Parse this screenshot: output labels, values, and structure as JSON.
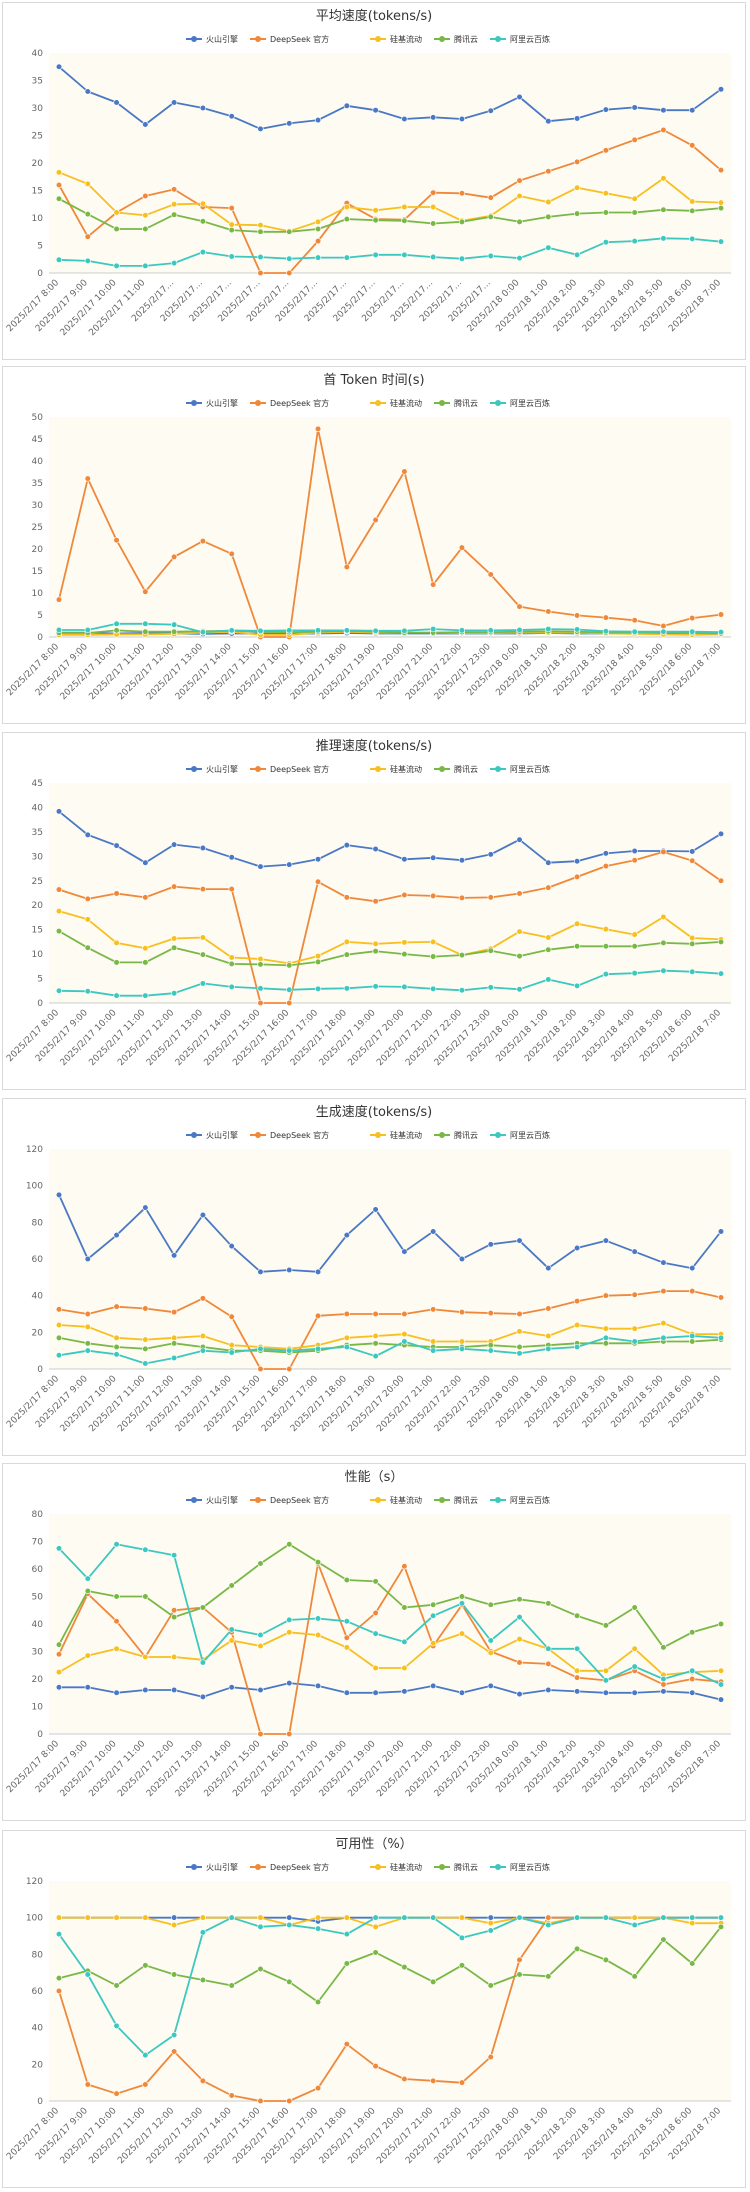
{
  "x": [
    "2025/2/17 8:00",
    "2025/2/17 9:00",
    "2025/2/17 10:00",
    "2025/2/17 11:00",
    "2025/2/17 12:00",
    "2025/2/17 13:00",
    "2025/2/17 14:00",
    "2025/2/17 15:00",
    "2025/2/17 16:00",
    "2025/2/17 17:00",
    "2025/2/17 18:00",
    "2025/2/17 19:00",
    "2025/2/17 20:00",
    "2025/2/17 21:00",
    "2025/2/17 22:00",
    "2025/2/17 23:00",
    "2025/2/18 0:00",
    "2025/2/18 1:00",
    "2025/2/18 2:00",
    "2025/2/18 3:00",
    "2025/2/18 4:00",
    "2025/2/18 5:00",
    "2025/2/18 6:00",
    "2025/2/18 7:00"
  ],
  "x_labels_truncated": [
    "2025/2/17 8:00",
    "2025/2/17 9:00",
    "2025/2/17 10:00",
    "2025/2/17 11:00",
    "2025/2/17…",
    "2025/2/17…",
    "2025/2/17…",
    "2025/2/17…",
    "2025/2/17…",
    "2025/2/17…",
    "2025/2/17…",
    "2025/2/17…",
    "2025/2/17…",
    "2025/2/17…",
    "2025/2/17…",
    "2025/2/17…",
    "2025/2/18 0:00",
    "2025/2/18 1:00",
    "2025/2/18 2:00",
    "2025/2/18 3:00",
    "2025/2/18 4:00",
    "2025/2/18 5:00",
    "2025/2/18 6:00",
    "2025/2/18 7:00"
  ],
  "series_names": [
    "火山引擎",
    "DeepSeek 官方",
    "硅基流动",
    "腾讯云",
    "阿里云百炼"
  ],
  "colors": [
    "#4a78c5",
    "#f0883a",
    "#f7bf1f",
    "#79b846",
    "#3cc8bf"
  ],
  "chart_data": [
    {
      "type": "line",
      "title": "平均速度(tokens/s)",
      "x_labels": "truncated",
      "ylim": [
        0,
        40
      ],
      "ystep": 5,
      "grid": false,
      "legend": "top-center",
      "series": [
        {
          "name": "火山引擎",
          "values": [
            37.5,
            33,
            31,
            27,
            31,
            30,
            28.5,
            26.2,
            27.2,
            27.8,
            30.4,
            29.6,
            28,
            28.3,
            28,
            29.5,
            32,
            27.6,
            28.1,
            29.7,
            30.1,
            29.6,
            29.6,
            33.4
          ]
        },
        {
          "name": "DeepSeek 官方",
          "values": [
            16,
            6.6,
            11,
            14,
            15.2,
            12,
            11.8,
            0,
            0,
            5.8,
            12.7,
            9.8,
            9.7,
            14.6,
            14.5,
            13.7,
            16.8,
            18.5,
            20.2,
            22.3,
            24.2,
            26,
            23.2,
            18.7
          ]
        },
        {
          "name": "硅基流动",
          "values": [
            18.3,
            16.2,
            11,
            10.5,
            12.5,
            12.6,
            8.8,
            8.7,
            7.6,
            9.3,
            12,
            11.4,
            12,
            12,
            9.5,
            10.4,
            14,
            12.9,
            15.5,
            14.5,
            13.5,
            17.2,
            13,
            12.8
          ]
        },
        {
          "name": "腾讯云",
          "values": [
            13.5,
            10.7,
            8,
            8,
            10.6,
            9.4,
            7.8,
            7.5,
            7.5,
            8,
            9.8,
            9.6,
            9.5,
            9,
            9.3,
            10.2,
            9.3,
            10.2,
            10.8,
            11,
            11,
            11.5,
            11.3,
            11.8
          ]
        },
        {
          "name": "阿里云百炼",
          "values": [
            2.4,
            2.2,
            1.3,
            1.3,
            1.8,
            3.8,
            3,
            2.9,
            2.6,
            2.8,
            2.8,
            3.3,
            3.3,
            2.9,
            2.6,
            3.1,
            2.7,
            4.6,
            3.3,
            5.6,
            5.8,
            6.3,
            6.2,
            5.7
          ]
        }
      ]
    },
    {
      "type": "line",
      "title": "首 Token 时间(s)",
      "x_labels": "full",
      "ylim": [
        0,
        50
      ],
      "ystep": 5,
      "grid": false,
      "legend": "top-center",
      "series": [
        {
          "name": "火山引擎",
          "values": [
            1,
            1,
            0.8,
            0.9,
            0.8,
            0.7,
            0.8,
            0.8,
            0.7,
            0.8,
            0.9,
            0.8,
            0.8,
            0.8,
            0.8,
            0.8,
            0.8,
            0.9,
            0.8,
            0.8,
            0.8,
            0.8,
            0.8,
            0.8
          ]
        },
        {
          "name": "DeepSeek 官方",
          "values": [
            8.5,
            36,
            22,
            10.3,
            18.2,
            21.8,
            18.9,
            0,
            0,
            47.3,
            15.9,
            26.6,
            37.6,
            11.9,
            20.3,
            14.2,
            6.9,
            5.8,
            4.9,
            4.4,
            3.8,
            2.5,
            4.3,
            5.1
          ]
        },
        {
          "name": "硅基流动",
          "values": [
            0.5,
            0.5,
            0.6,
            0.6,
            0.7,
            1,
            1.2,
            0.5,
            0.5,
            1,
            1.2,
            1,
            1,
            1,
            0.9,
            0.9,
            1,
            1,
            1,
            0.8,
            0.7,
            0.6,
            0.5,
            0.6
          ]
        },
        {
          "name": "腾讯云",
          "values": [
            0.9,
            0.9,
            1.5,
            1.2,
            1.2,
            1.3,
            1.4,
            1.2,
            1.1,
            1.2,
            1.4,
            1.2,
            1,
            1,
            1.1,
            1.1,
            1.2,
            1.3,
            1.2,
            1,
            1,
            1.2,
            0.9,
            0.8
          ]
        },
        {
          "name": "阿里云百炼",
          "values": [
            1.6,
            1.6,
            3,
            3,
            2.8,
            1.1,
            1.5,
            1.4,
            1.5,
            1.5,
            1.5,
            1.4,
            1.4,
            1.8,
            1.5,
            1.5,
            1.6,
            1.8,
            1.7,
            1.3,
            1.2,
            1.2,
            1.2,
            1.1
          ]
        }
      ]
    },
    {
      "type": "line",
      "title": "推理速度(tokens/s)",
      "x_labels": "full",
      "ylim": [
        0,
        45
      ],
      "ystep": 5,
      "grid": false,
      "legend": "top-center",
      "series": [
        {
          "name": "火山引擎",
          "values": [
            39.2,
            34.4,
            32.2,
            28.7,
            32.4,
            31.7,
            29.8,
            27.9,
            28.3,
            29.4,
            32.3,
            31.5,
            29.4,
            29.7,
            29.2,
            30.4,
            33.4,
            28.7,
            29,
            30.6,
            31.1,
            31.1,
            31,
            34.6
          ]
        },
        {
          "name": "DeepSeek 官方",
          "values": [
            23.2,
            21.3,
            22.4,
            21.6,
            23.8,
            23.3,
            23.3,
            0,
            0,
            24.8,
            21.6,
            20.8,
            22.1,
            21.9,
            21.5,
            21.6,
            22.4,
            23.6,
            25.8,
            28,
            29.2,
            30.9,
            29.1,
            25
          ]
        },
        {
          "name": "硅基流动",
          "values": [
            18.8,
            17.1,
            12.3,
            11.2,
            13.2,
            13.4,
            9.3,
            9,
            8.1,
            9.6,
            12.5,
            12.1,
            12.4,
            12.5,
            9.8,
            11.1,
            14.6,
            13.4,
            16.2,
            15.1,
            14,
            17.6,
            13.3,
            13
          ]
        },
        {
          "name": "腾讯云",
          "values": [
            14.7,
            11.3,
            8.3,
            8.3,
            11.3,
            9.9,
            8,
            7.9,
            7.7,
            8.4,
            9.9,
            10.6,
            10,
            9.5,
            9.8,
            10.7,
            9.6,
            10.9,
            11.6,
            11.6,
            11.6,
            12.3,
            12.1,
            12.5
          ]
        },
        {
          "name": "阿里云百炼",
          "values": [
            2.5,
            2.4,
            1.5,
            1.5,
            2,
            4,
            3.3,
            3,
            2.7,
            2.9,
            3,
            3.4,
            3.3,
            2.9,
            2.6,
            3.2,
            2.8,
            4.8,
            3.5,
            5.9,
            6.1,
            6.6,
            6.4,
            6
          ]
        }
      ]
    },
    {
      "type": "line",
      "title": "生成速度(tokens/s)",
      "x_labels": "full",
      "ylim": [
        0,
        120
      ],
      "ystep": 20,
      "grid": false,
      "legend": "top-center",
      "series": [
        {
          "name": "火山引擎",
          "values": [
            95,
            60,
            73,
            88,
            62,
            84,
            67,
            53,
            54,
            53,
            73,
            87,
            64,
            75,
            60,
            68,
            70,
            55,
            66,
            70,
            64,
            58,
            55,
            75
          ]
        },
        {
          "name": "DeepSeek 官方",
          "values": [
            32.5,
            30,
            34,
            33,
            31,
            38.5,
            28.5,
            0,
            0,
            29,
            30,
            30,
            30,
            32.5,
            31,
            30.5,
            30,
            33,
            37,
            40,
            40.5,
            42.5,
            42.5,
            39
          ]
        },
        {
          "name": "硅基流动",
          "values": [
            24,
            23,
            17,
            16,
            17,
            18,
            13,
            12,
            11,
            13,
            17,
            18,
            19,
            15,
            15,
            15,
            20.5,
            18,
            24,
            22,
            22,
            25,
            19,
            19
          ]
        },
        {
          "name": "腾讯云",
          "values": [
            17,
            14,
            12,
            11,
            14,
            12,
            10,
            10,
            9,
            10,
            13,
            14,
            13,
            12,
            12,
            13,
            12,
            13,
            14,
            14,
            14,
            15,
            15,
            16
          ]
        },
        {
          "name": "阿里云百炼",
          "values": [
            7.5,
            10,
            8,
            3,
            6,
            10,
            9,
            11,
            10,
            11,
            12,
            7,
            15,
            10,
            11,
            10,
            8.5,
            11,
            12,
            17,
            15,
            17,
            18,
            17
          ]
        }
      ]
    },
    {
      "type": "line",
      "title": "性能（s）",
      "x_labels": "full",
      "ylim": [
        0,
        80
      ],
      "ystep": 10,
      "grid": false,
      "legend": "top-center",
      "series": [
        {
          "name": "火山引擎",
          "values": [
            17,
            17,
            15,
            16,
            16,
            13.5,
            17,
            16,
            18.5,
            17.5,
            15,
            15,
            15.5,
            17.5,
            15,
            17.5,
            14.5,
            16,
            15.5,
            15,
            15,
            15.5,
            15,
            12.5
          ]
        },
        {
          "name": "DeepSeek 官方",
          "values": [
            29,
            51,
            41,
            28,
            45,
            46,
            37,
            0,
            0,
            62,
            35,
            44,
            61,
            32,
            47,
            30,
            26,
            25.5,
            20.5,
            19.5,
            23,
            18,
            20,
            19
          ]
        },
        {
          "name": "硅基流动",
          "values": [
            22.5,
            28.5,
            31,
            28,
            28,
            27,
            34,
            32,
            37,
            36,
            31.5,
            24,
            24,
            33,
            36.5,
            29.5,
            34.5,
            31,
            23,
            23,
            31,
            21.5,
            22.5,
            23
          ]
        },
        {
          "name": "腾讯云",
          "values": [
            32.5,
            52,
            50,
            50,
            42.5,
            46,
            54,
            62,
            69,
            62.5,
            56,
            55.5,
            46,
            47,
            50,
            47,
            49,
            47.5,
            43,
            39.5,
            46,
            31.5,
            37,
            40
          ]
        },
        {
          "name": "阿里云百炼",
          "values": [
            67.5,
            56.5,
            69,
            67,
            65,
            26,
            38,
            36,
            41.5,
            42,
            41,
            36.5,
            33.5,
            43,
            47.5,
            34,
            42.5,
            31,
            31,
            19.5,
            24.5,
            20,
            23,
            18
          ]
        }
      ]
    },
    {
      "type": "line",
      "title": "可用性（%）",
      "x_labels": "full",
      "ylim": [
        0,
        120
      ],
      "ystep": 20,
      "grid": false,
      "legend": "top-center",
      "series": [
        {
          "name": "火山引擎",
          "values": [
            100,
            100,
            100,
            100,
            100,
            100,
            100,
            100,
            100,
            98,
            100,
            100,
            100,
            100,
            100,
            100,
            100,
            100,
            100,
            100,
            100,
            100,
            100,
            100
          ]
        },
        {
          "name": "DeepSeek 官方",
          "values": [
            60,
            9,
            4,
            9,
            27,
            11,
            3,
            0,
            0,
            7,
            31,
            19,
            12,
            11,
            10,
            24,
            77,
            100,
            100,
            100,
            100,
            100,
            100,
            100
          ]
        },
        {
          "name": "硅基流动",
          "values": [
            100,
            100,
            100,
            100,
            96,
            100,
            100,
            100,
            96,
            100,
            100,
            95,
            100,
            100,
            100,
            97,
            100,
            97,
            100,
            100,
            100,
            100,
            97,
            97
          ]
        },
        {
          "name": "腾讯云",
          "values": [
            67,
            71,
            63,
            74,
            69,
            66,
            63,
            72,
            65,
            54,
            75,
            81,
            73,
            65,
            74,
            63,
            69,
            68,
            83,
            77,
            68,
            88,
            75,
            95
          ]
        },
        {
          "name": "阿里云百炼",
          "values": [
            91,
            69,
            41,
            25,
            36,
            92,
            100,
            95,
            96,
            94,
            91,
            100,
            100,
            100,
            89,
            93,
            100,
            96,
            100,
            100,
            96,
            100,
            100,
            100
          ]
        }
      ]
    }
  ]
}
